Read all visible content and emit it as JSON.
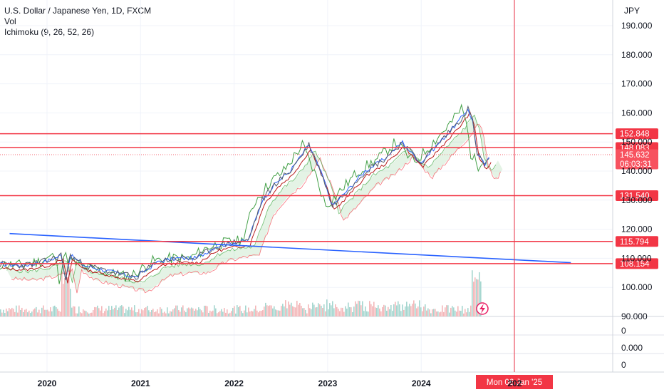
{
  "legend": {
    "title": "U.S. Dollar / Japanese Yen, 1D, FXCM",
    "vol": "Vol",
    "ichimoku": "Ichimoku (9, 26, 52, 26)"
  },
  "currency": "JPY",
  "chart_data": {
    "type": "line",
    "symbol": "USDJPY",
    "timeframe": "1D",
    "y_ticks": [
      "190.000",
      "180.000",
      "170.000",
      "160.000",
      "150.000",
      "140.000",
      "130.000",
      "120.000",
      "110.000",
      "100.000",
      "90.000"
    ],
    "x_ticks": [
      "2020",
      "2021",
      "2022",
      "2023",
      "2024",
      "202"
    ],
    "lower_pane_ticks": [
      "0",
      "0.000",
      "0"
    ],
    "horizontal_levels": [
      152.848,
      148.083,
      131.54,
      115.794,
      108.154
    ],
    "level_labels": [
      "152.848",
      "148.083",
      "131.540",
      "115.794",
      "108.154"
    ],
    "current_price": "145.632",
    "countdown": "06:03:31",
    "crosshair_date": "Mon 06 Jan '25",
    "price_series": {
      "name": "Close",
      "x": [
        2019.5,
        2019.75,
        2020.0,
        2020.15,
        2020.2,
        2020.25,
        2020.4,
        2020.6,
        2020.8,
        2020.95,
        2021.2,
        2021.4,
        2021.6,
        2021.8,
        2022.0,
        2022.15,
        2022.3,
        2022.45,
        2022.6,
        2022.8,
        2022.95,
        2023.05,
        2023.2,
        2023.4,
        2023.6,
        2023.8,
        2023.9,
        2024.0,
        2024.2,
        2024.4,
        2024.5,
        2024.55,
        2024.6,
        2024.68,
        2024.75
      ],
      "y": [
        108,
        107.5,
        109,
        111,
        103,
        111,
        107.5,
        106,
        104.5,
        103.5,
        109,
        110,
        110,
        114,
        115.5,
        116,
        130,
        136,
        140,
        149,
        138,
        128,
        133,
        140,
        144,
        150,
        146,
        143,
        150,
        157,
        161.5,
        157,
        146,
        142,
        145.6
      ]
    },
    "trendline": {
      "name": "Trendline",
      "from": [
        2019.6,
        118.5
      ],
      "to": [
        2025.6,
        108.5
      ]
    },
    "volume_note": "volume histogram in lower band of price pane"
  }
}
